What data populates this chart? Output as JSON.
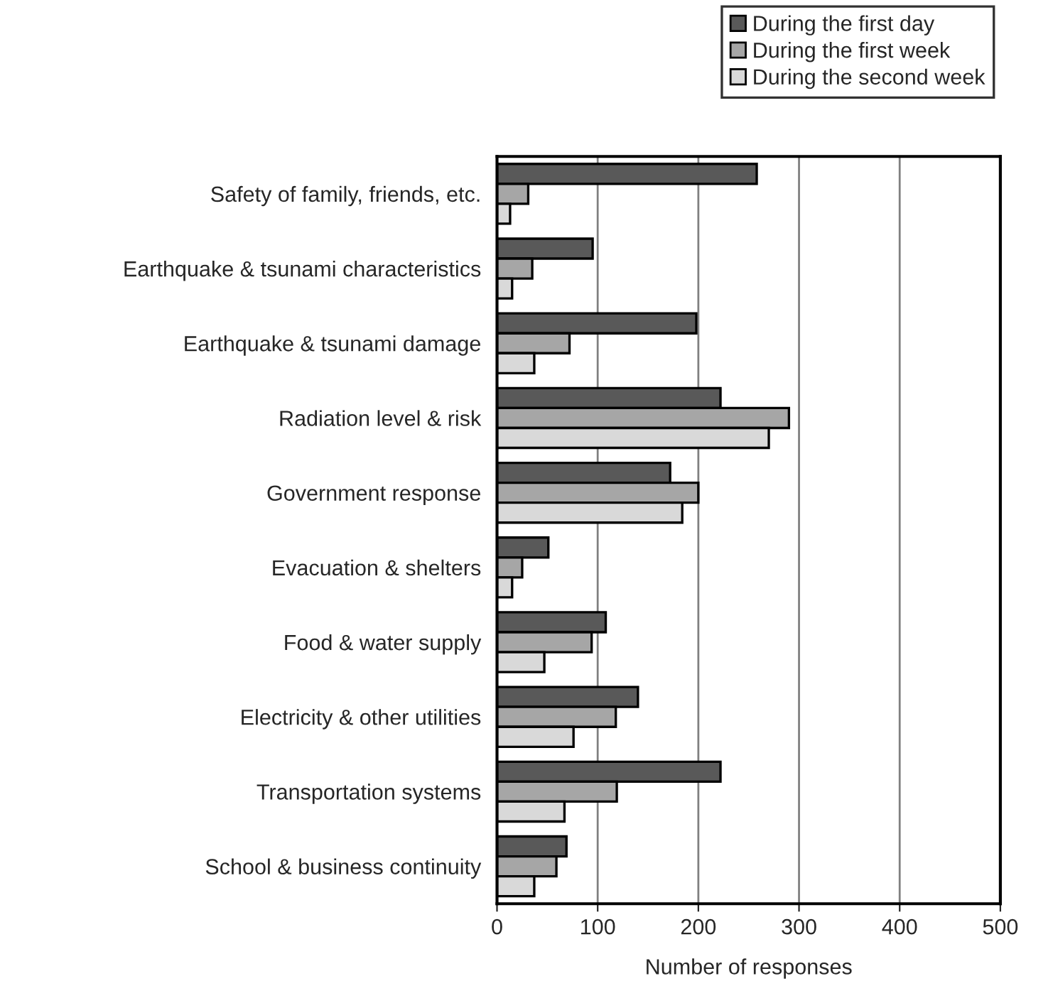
{
  "chart_data": {
    "type": "bar",
    "orientation": "horizontal",
    "xlabel": "Number of responses",
    "categories": [
      "Safety of family, friends, etc.",
      "Earthquake & tsunami characteristics",
      "Earthquake & tsunami damage",
      "Radiation level & risk",
      "Government response",
      "Evacuation & shelters",
      "Food & water supply",
      "Electricity & other utilities",
      "Transportation systems",
      "School & business continuity"
    ],
    "series": [
      {
        "name": "During the first day",
        "color": "#595959",
        "values": [
          258,
          95,
          198,
          222,
          172,
          51,
          108,
          140,
          222,
          69
        ]
      },
      {
        "name": "During the first week",
        "color": "#a6a6a6",
        "values": [
          31,
          35,
          72,
          290,
          200,
          25,
          94,
          118,
          119,
          59
        ]
      },
      {
        "name": "During the second week",
        "color": "#d9d9d9",
        "values": [
          13,
          15,
          37,
          270,
          184,
          15,
          47,
          76,
          67,
          37
        ]
      }
    ],
    "xlim": [
      0,
      500
    ],
    "xticks": [
      0,
      100,
      200,
      300,
      400,
      500
    ],
    "grid": "x",
    "legend": "top right"
  }
}
